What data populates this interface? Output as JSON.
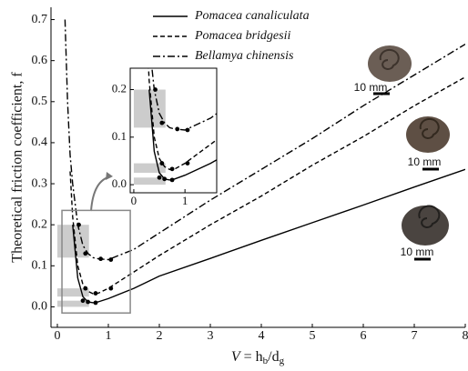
{
  "chart_data": {
    "type": "line",
    "y_label": "Theoretical friction coefficient, f",
    "x_label_parts": [
      "V",
      " = h",
      "b",
      "/d",
      "g"
    ],
    "x": [
      0.15,
      0.2,
      0.25,
      0.3,
      0.4,
      0.5,
      0.6,
      0.7,
      0.8,
      1,
      1.5,
      2,
      3,
      4,
      5,
      6,
      7,
      8
    ],
    "series": [
      {
        "name": "Pomacea canaliculata",
        "color": "#000000",
        "dash": "solid",
        "values": [
          null,
          null,
          null,
          0.2,
          0.07,
          0.025,
          0.012,
          0.01,
          0.012,
          0.02,
          0.045,
          0.075,
          0.118,
          0.162,
          0.205,
          0.248,
          0.292,
          0.335
        ],
        "points_x": [
          0.5,
          0.6,
          0.75
        ],
        "points_y": [
          0.015,
          0.012,
          0.01
        ],
        "band": [
          0,
          0.015
        ]
      },
      {
        "name": "Pomacea bridgesii",
        "color": "#000000",
        "dash": "dashed",
        "values": [
          null,
          null,
          0.33,
          0.22,
          0.1,
          0.055,
          0.038,
          0.032,
          0.033,
          0.045,
          0.085,
          0.125,
          0.2,
          0.27,
          0.345,
          0.415,
          0.49,
          0.56
        ],
        "points_x": [
          0.55,
          0.75,
          1.05
        ],
        "points_y": [
          0.045,
          0.033,
          0.045
        ],
        "band": [
          0.025,
          0.045
        ]
      },
      {
        "name": "Bellamya chinensis",
        "color": "#000000",
        "dash": "dashdot",
        "values": [
          0.7,
          0.5,
          0.37,
          0.3,
          0.2,
          0.15,
          0.13,
          0.12,
          0.117,
          0.115,
          0.14,
          0.18,
          0.26,
          0.335,
          0.41,
          0.49,
          0.565,
          0.64
        ],
        "points_x": [
          0.42,
          0.55,
          0.85,
          1.05
        ],
        "points_y": [
          0.2,
          0.13,
          0.117,
          0.115
        ],
        "band": [
          0.12,
          0.2
        ]
      }
    ],
    "xlim": [
      -0.125,
      8
    ],
    "ylim": [
      -0.05,
      0.73
    ],
    "xticks": [
      0,
      1,
      2,
      3,
      4,
      5,
      6,
      7,
      8
    ],
    "yticks": [
      {
        "value": 0,
        "label": "0.0"
      },
      0.1,
      0.2,
      0.3,
      0.4,
      0.5,
      0.6,
      0.7
    ],
    "inset": {
      "xlim": [
        -0.07,
        1.62
      ],
      "ylim": [
        -0.017,
        0.245
      ],
      "xticks": [
        0,
        1
      ],
      "yticks": [
        {
          "value": 0,
          "label": "0.0"
        },
        0.1,
        0.2
      ]
    },
    "scale_labels": [
      "10 mm",
      "10 mm",
      "10 mm"
    ]
  }
}
